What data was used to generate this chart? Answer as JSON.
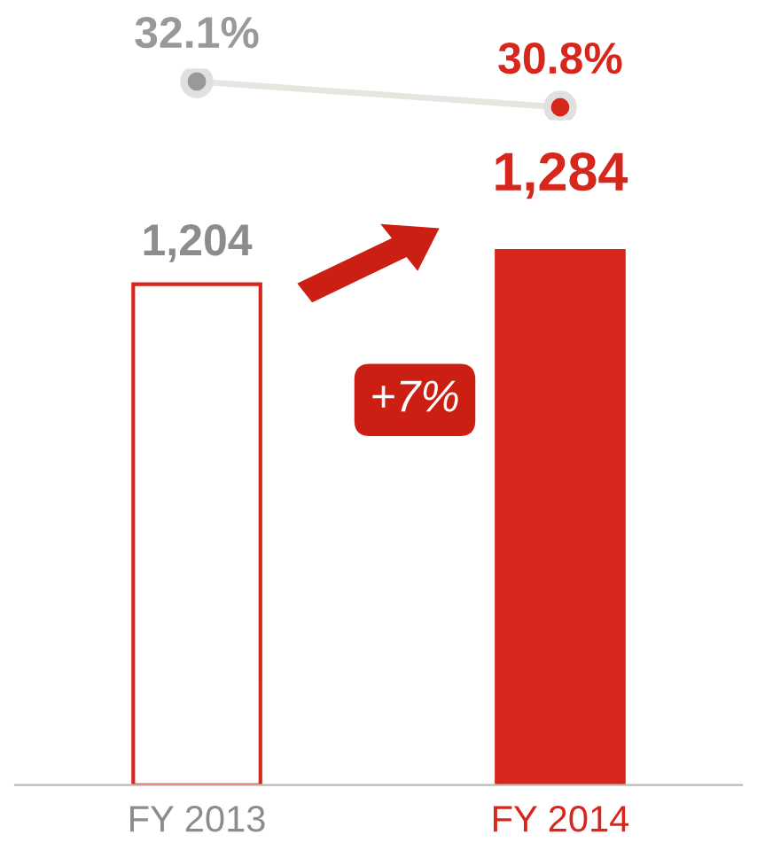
{
  "chart_data": [
    {
      "type": "line",
      "categories": [
        null,
        null
      ],
      "tick_labels": false,
      "legend": false,
      "grid": false,
      "series": [
        {
          "color": "#e6e6e0",
          "colors": [
            "#999999",
            "#d7261c"
          ],
          "marker": "circle",
          "values": [
            32.1,
            30.8
          ],
          "value_labels": [
            "32.1%",
            "30.8%"
          ]
        }
      ]
    },
    {
      "type": "bar",
      "categories": [
        "FY 2013",
        "FY 2014"
      ],
      "tick_labels": "x",
      "legend": false,
      "grid": false,
      "series": [
        {
          "color": "#d7261c",
          "colors": [
            "#ffffff",
            "#d7261c"
          ],
          "values": [
            1204,
            1284
          ],
          "value_labels": [
            "1,204",
            "1,284"
          ]
        }
      ],
      "annotations": [
        "+7%"
      ]
    }
  ]
}
